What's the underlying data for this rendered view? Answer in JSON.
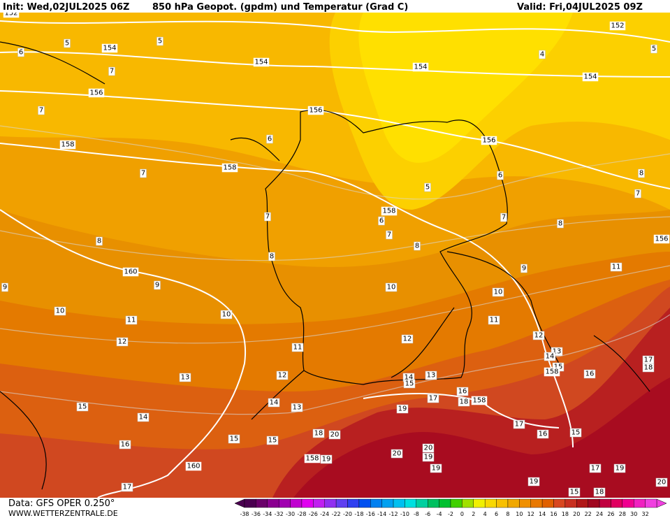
{
  "header": {
    "init": "Init: Wed,02JUL2025 06Z",
    "title": "850 hPa Geopot. (gpdm) und Temperatur (Grad C)",
    "valid": "Valid: Fri,04JUL2025 09Z"
  },
  "footer": {
    "data": "Data: GFS OPER 0.250°",
    "site": "WWW.WETTERZENTRALE.DE"
  },
  "geopotential_labels": [
    152,
    154,
    154,
    154,
    152,
    154,
    156,
    156,
    156,
    158,
    158,
    158,
    156,
    160,
    158,
    158,
    158,
    160
  ],
  "temperature_labels": [
    5,
    5,
    5,
    4,
    6,
    7,
    7,
    6,
    7,
    5,
    6,
    8,
    7,
    7,
    6,
    7,
    8,
    7,
    8,
    8,
    9,
    8,
    9,
    9,
    10,
    10,
    10,
    10,
    11,
    11,
    11,
    11,
    12,
    12,
    12,
    12,
    13,
    13,
    14,
    15,
    13,
    14,
    15,
    16,
    17,
    18,
    15,
    14,
    13,
    14,
    16,
    17,
    18,
    19,
    17,
    16,
    15,
    16,
    15,
    15,
    18,
    20,
    20,
    19,
    20,
    19,
    19,
    17,
    19,
    19,
    18,
    15,
    17,
    20
  ],
  "colorbar": {
    "values": [
      -38,
      -36,
      -34,
      -32,
      -30,
      -28,
      -26,
      -24,
      -22,
      -20,
      -18,
      -16,
      -14,
      -12,
      -10,
      -8,
      -6,
      -4,
      -2,
      0,
      2,
      4,
      6,
      8,
      10,
      12,
      14,
      16,
      18,
      20,
      22,
      24,
      26,
      28,
      30,
      32
    ],
    "colors": [
      "#4a0050",
      "#6a006a",
      "#8a0090",
      "#a000b0",
      "#c000d0",
      "#e000f0",
      "#c020f0",
      "#9030f0",
      "#6040f0",
      "#3040f0",
      "#0050f0",
      "#0080f0",
      "#00a0f0",
      "#00c0f0",
      "#00e0e0",
      "#00d0a0",
      "#00c060",
      "#00c030",
      "#40d000",
      "#a0e000",
      "#f0f000",
      "#f8d800",
      "#f8c000",
      "#f0a800",
      "#f09000",
      "#e87800",
      "#e06000",
      "#d84820",
      "#c83020",
      "#b01818",
      "#a00820",
      "#c00040",
      "#e00060",
      "#f00090",
      "#f020c0",
      "#f040e0"
    ]
  }
}
